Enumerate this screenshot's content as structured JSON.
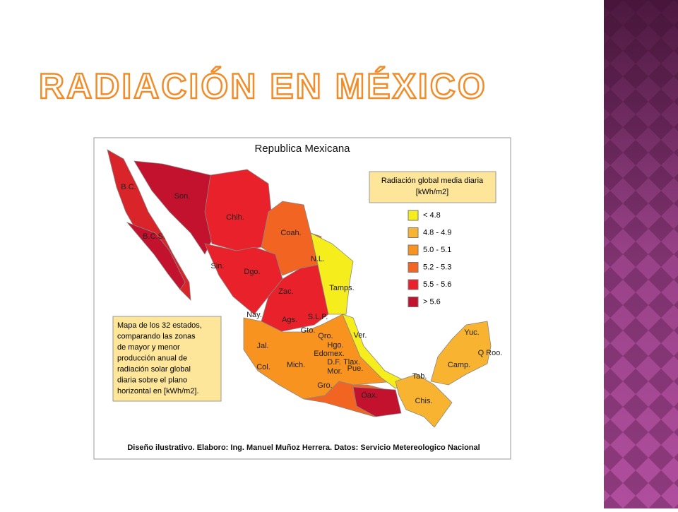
{
  "title": "RADIACIÓN EN MÉXICO",
  "map": {
    "title": "Republica Mexicana",
    "legend": {
      "title_lines": [
        "Radiación global media diaria",
        "[kWh/m2]"
      ],
      "items": [
        {
          "label": "< 4.8",
          "color": "#f5ee1c"
        },
        {
          "label": "4.8 - 4.9",
          "color": "#f8b430"
        },
        {
          "label": "5.0 - 5.1",
          "color": "#f7931e"
        },
        {
          "label": "5.2 - 5.3",
          "color": "#f26422"
        },
        {
          "label": "5.5 - 5.6",
          "color": "#e8212a"
        },
        {
          "label": "> 5.6",
          "color": "#c3122e"
        }
      ]
    },
    "states": [
      "B.C.",
      "Son.",
      "Chih.",
      "Coah.",
      "B.C.S.",
      "N.L.",
      "Sin.",
      "Dgo.",
      "Tamps.",
      "Zac.",
      "Nay.",
      "S.L.P.",
      "Ags.",
      "Gto.",
      "Ver.",
      "Qro.",
      "Hgo.",
      "Yuc.",
      "Jal.",
      "Edomex.",
      "Q Roo.",
      "D.F.",
      "Tlax.",
      "Camp.",
      "Mor.",
      "Pue.",
      "Col.",
      "Mich.",
      "Tab.",
      "Gro.",
      "Oax.",
      "Chis."
    ],
    "note_lines": [
      "Mapa de los 32 estados,",
      "comparando las zonas",
      "de mayor y menor",
      "producción anual de",
      "radiación solar global",
      "diaria sobre el plano",
      "horizontal en [kWh/m2]."
    ],
    "credit": "Diseño ilustrativo. Elaboro: Ing. Manuel Muñoz Herrera. Datos: Servicio Metereologico Nacional"
  }
}
